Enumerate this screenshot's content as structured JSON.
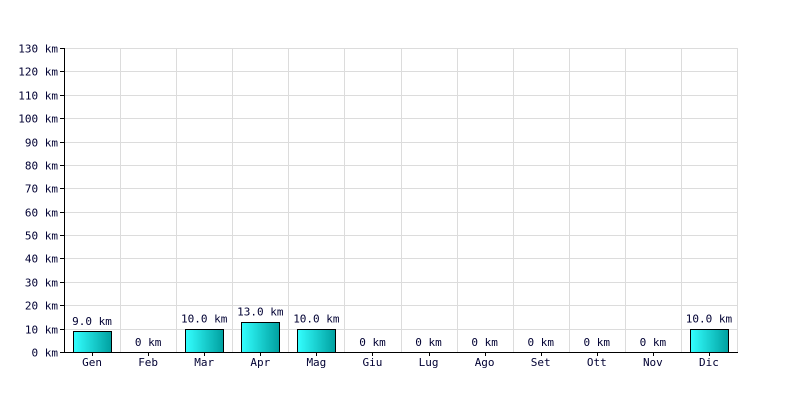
{
  "chart_data": {
    "type": "bar",
    "title": "",
    "xlabel": "",
    "ylabel": "",
    "unit": "km",
    "categories": [
      "Gen",
      "Feb",
      "Mar",
      "Apr",
      "Mag",
      "Giu",
      "Lug",
      "Ago",
      "Set",
      "Ott",
      "Nov",
      "Dic"
    ],
    "values": [
      9.0,
      0,
      10.0,
      13.0,
      10.0,
      0,
      0,
      0,
      0,
      0,
      0,
      10.0
    ],
    "value_labels": [
      "9.0 km",
      "0 km",
      "10.0 km",
      "13.0 km",
      "10.0 km",
      "0 km",
      "0 km",
      "0 km",
      "0 km",
      "0 km",
      "0 km",
      "10.0 km"
    ],
    "ylim": [
      0,
      130
    ],
    "y_ticks": [
      0,
      10,
      20,
      30,
      40,
      50,
      60,
      70,
      80,
      90,
      100,
      110,
      120,
      130
    ],
    "y_tick_labels": [
      "0 km",
      "10 km",
      "20 km",
      "30 km",
      "40 km",
      "50 km",
      "60 km",
      "70 km",
      "80 km",
      "90 km",
      "100 km",
      "110 km",
      "120 km",
      "130 km"
    ],
    "grid": true,
    "legend": "none",
    "colors": {
      "bar_light": "#33ffff",
      "bar_dark": "#00a0a0",
      "grid": "#dcdcdc",
      "text": "#000033"
    }
  }
}
